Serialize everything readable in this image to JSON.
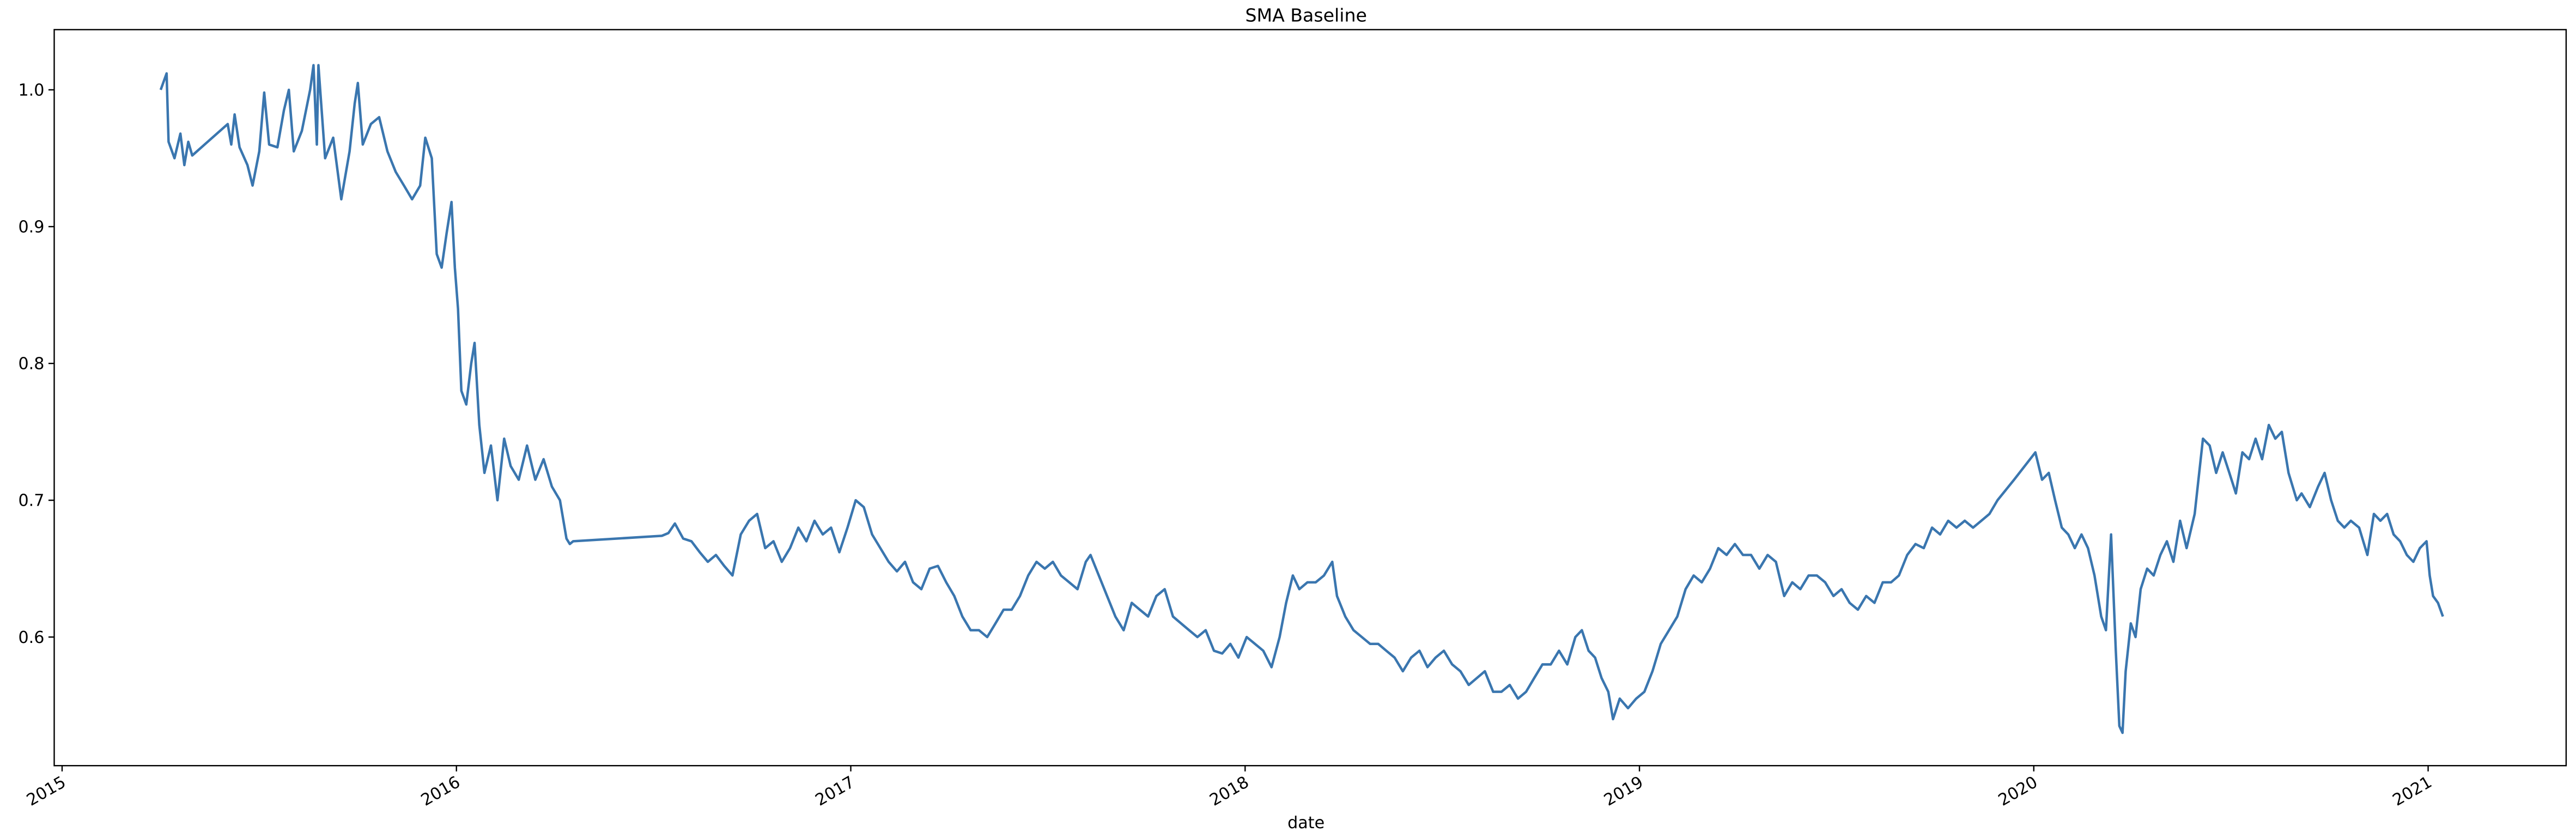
{
  "chart_data": {
    "type": "line",
    "title": "SMA Baseline",
    "x_label": "date",
    "color": "#3a76af",
    "grid": false,
    "xlim": [
      2014.98,
      2021.35
    ],
    "xticks": [
      2015,
      2016,
      2017,
      2018,
      2019,
      2020,
      2021
    ],
    "ylim": [
      0.506,
      1.044
    ],
    "yticks": [
      0.6,
      0.7,
      0.8,
      0.9,
      {
        "value": 1,
        "label": "1.0"
      }
    ],
    "x": [
      2015.25,
      2015.265,
      2015.27,
      2015.285,
      2015.3,
      2015.31,
      2015.32,
      2015.33,
      2015.42,
      2015.429,
      2015.4375,
      2015.45,
      2015.47,
      2015.483,
      2015.5,
      2015.5125,
      2015.525,
      2015.546,
      2015.5625,
      2015.575,
      2015.5875,
      2015.608,
      2015.629,
      2015.6375,
      2015.646,
      2015.65,
      2015.667,
      2015.6875,
      2015.708,
      2015.729,
      2015.742,
      2015.75,
      2015.7625,
      2015.783,
      2015.804,
      2015.825,
      2015.846,
      2015.867,
      2015.8875,
      2015.908,
      2015.921,
      2015.9375,
      2015.95,
      2015.9625,
      2015.975,
      2015.9875,
      2015.996,
      2016.004,
      2016.0125,
      2016.025,
      2016.0375,
      2016.046,
      2016.058,
      2016.071,
      2016.0875,
      2016.104,
      2016.121,
      2016.1375,
      2016.158,
      2016.179,
      2016.2,
      2016.221,
      2016.242,
      2016.2625,
      2016.279,
      2016.2875,
      2016.296,
      2016.521,
      2016.5375,
      2016.554,
      2016.575,
      2016.596,
      2016.617,
      2016.6375,
      2016.658,
      2016.679,
      2016.7,
      2016.721,
      2016.742,
      2016.7625,
      2016.783,
      2016.804,
      2016.825,
      2016.846,
      2016.867,
      2016.8875,
      2016.908,
      2016.929,
      2016.95,
      2016.971,
      2016.9917,
      2017.0125,
      2017.033,
      2017.054,
      2017.075,
      2017.096,
      2017.117,
      2017.1375,
      2017.158,
      2017.179,
      2017.2,
      2017.221,
      2017.242,
      2017.2625,
      2017.283,
      2017.304,
      2017.325,
      2017.346,
      2017.367,
      2017.3875,
      2017.408,
      2017.429,
      2017.45,
      2017.471,
      2017.492,
      2017.5125,
      2017.533,
      2017.554,
      2017.575,
      2017.596,
      2017.608,
      2017.629,
      2017.65,
      2017.671,
      2017.692,
      2017.7125,
      2017.733,
      2017.754,
      2017.775,
      2017.796,
      2017.817,
      2017.8375,
      2017.858,
      2017.879,
      2017.9,
      2017.921,
      2017.942,
      2017.9625,
      2017.983,
      2018.004,
      2018.025,
      2018.046,
      2018.067,
      2018.0875,
      2018.104,
      2018.121,
      2018.1375,
      2018.158,
      2018.179,
      2018.2,
      2018.221,
      2018.233,
      2018.254,
      2018.275,
      2018.296,
      2018.317,
      2018.3375,
      2018.358,
      2018.379,
      2018.4,
      2018.421,
      2018.442,
      2018.4625,
      2018.483,
      2018.504,
      2018.525,
      2018.546,
      2018.567,
      2018.5875,
      2018.608,
      2018.629,
      2018.65,
      2018.671,
      2018.692,
      2018.7125,
      2018.733,
      2018.754,
      2018.775,
      2018.796,
      2018.817,
      2018.8375,
      2018.854,
      2018.871,
      2018.8875,
      2018.904,
      2018.921,
      2018.933,
      2018.95,
      2018.971,
      2018.9917,
      2019.0125,
      2019.033,
      2019.054,
      2019.075,
      2019.096,
      2019.117,
      2019.1375,
      2019.158,
      2019.179,
      2019.2,
      2019.221,
      2019.242,
      2019.2625,
      2019.283,
      2019.304,
      2019.325,
      2019.346,
      2019.367,
      2019.3875,
      2019.408,
      2019.429,
      2019.45,
      2019.471,
      2019.492,
      2019.5125,
      2019.533,
      2019.554,
      2019.575,
      2019.596,
      2019.617,
      2019.638,
      2019.658,
      2019.679,
      2019.7,
      2019.721,
      2019.742,
      2019.7625,
      2019.783,
      2019.804,
      2019.825,
      2019.846,
      2019.867,
      2019.8875,
      2019.908,
      2019.95,
      2020.004,
      2020.021,
      2020.038,
      2020.054,
      2020.071,
      2020.0875,
      2020.104,
      2020.121,
      2020.1375,
      2020.154,
      2020.171,
      2020.183,
      2020.196,
      2020.208,
      2020.217,
      2020.225,
      2020.233,
      2020.246,
      2020.258,
      2020.271,
      2020.2875,
      2020.304,
      2020.321,
      2020.3375,
      2020.354,
      2020.371,
      2020.3875,
      2020.408,
      2020.429,
      2020.446,
      2020.4625,
      2020.479,
      2020.496,
      2020.5125,
      2020.529,
      2020.546,
      2020.5625,
      2020.579,
      2020.596,
      2020.6125,
      2020.629,
      2020.646,
      2020.667,
      2020.679,
      2020.7,
      2020.721,
      2020.7375,
      2020.754,
      2020.771,
      2020.7875,
      2020.804,
      2020.825,
      2020.846,
      2020.8625,
      2020.879,
      2020.896,
      2020.9125,
      2020.929,
      2020.946,
      2020.9625,
      2020.979,
      2020.996,
      2021.004,
      2021.0125,
      2021.025,
      2021.0375
    ],
    "values": [
      1.0,
      1.012,
      0.962,
      0.95,
      0.968,
      0.945,
      0.962,
      0.952,
      0.975,
      0.96,
      0.982,
      0.958,
      0.945,
      0.93,
      0.955,
      0.998,
      0.96,
      0.958,
      0.985,
      1.0,
      0.955,
      0.97,
      1.0,
      1.018,
      0.96,
      1.018,
      0.95,
      0.965,
      0.92,
      0.955,
      0.99,
      1.005,
      0.96,
      0.975,
      0.98,
      0.955,
      0.94,
      0.93,
      0.92,
      0.93,
      0.965,
      0.95,
      0.88,
      0.87,
      0.895,
      0.918,
      0.87,
      0.84,
      0.78,
      0.77,
      0.8,
      0.815,
      0.755,
      0.72,
      0.74,
      0.7,
      0.745,
      0.725,
      0.715,
      0.74,
      0.715,
      0.73,
      0.71,
      0.7,
      0.672,
      0.668,
      0.67,
      0.674,
      0.676,
      0.683,
      0.672,
      0.67,
      0.662,
      0.655,
      0.66,
      0.652,
      0.645,
      0.675,
      0.685,
      0.69,
      0.665,
      0.67,
      0.655,
      0.665,
      0.68,
      0.67,
      0.685,
      0.675,
      0.68,
      0.662,
      0.68,
      0.7,
      0.695,
      0.675,
      0.665,
      0.655,
      0.648,
      0.655,
      0.64,
      0.635,
      0.65,
      0.652,
      0.64,
      0.63,
      0.615,
      0.605,
      0.605,
      0.6,
      0.61,
      0.62,
      0.62,
      0.63,
      0.645,
      0.655,
      0.65,
      0.655,
      0.645,
      0.64,
      0.635,
      0.655,
      0.66,
      0.645,
      0.63,
      0.615,
      0.605,
      0.625,
      0.62,
      0.615,
      0.63,
      0.635,
      0.615,
      0.61,
      0.605,
      0.6,
      0.605,
      0.59,
      0.588,
      0.595,
      0.585,
      0.6,
      0.595,
      0.59,
      0.578,
      0.6,
      0.625,
      0.645,
      0.635,
      0.64,
      0.64,
      0.645,
      0.655,
      0.63,
      0.615,
      0.605,
      0.6,
      0.595,
      0.595,
      0.59,
      0.585,
      0.575,
      0.585,
      0.59,
      0.578,
      0.585,
      0.59,
      0.58,
      0.575,
      0.565,
      0.57,
      0.575,
      0.56,
      0.56,
      0.565,
      0.555,
      0.56,
      0.57,
      0.58,
      0.58,
      0.59,
      0.58,
      0.6,
      0.605,
      0.59,
      0.585,
      0.57,
      0.56,
      0.54,
      0.555,
      0.548,
      0.555,
      0.56,
      0.575,
      0.595,
      0.605,
      0.615,
      0.635,
      0.645,
      0.64,
      0.65,
      0.665,
      0.66,
      0.668,
      0.66,
      0.66,
      0.65,
      0.66,
      0.655,
      0.63,
      0.64,
      0.635,
      0.645,
      0.645,
      0.64,
      0.63,
      0.635,
      0.625,
      0.62,
      0.63,
      0.625,
      0.64,
      0.64,
      0.645,
      0.66,
      0.668,
      0.665,
      0.68,
      0.675,
      0.685,
      0.68,
      0.685,
      0.68,
      0.685,
      0.69,
      0.7,
      0.715,
      0.735,
      0.715,
      0.72,
      0.7,
      0.68,
      0.675,
      0.665,
      0.675,
      0.665,
      0.645,
      0.615,
      0.605,
      0.675,
      0.59,
      0.535,
      0.53,
      0.575,
      0.61,
      0.6,
      0.635,
      0.65,
      0.645,
      0.66,
      0.67,
      0.655,
      0.685,
      0.665,
      0.69,
      0.745,
      0.74,
      0.72,
      0.735,
      0.72,
      0.705,
      0.735,
      0.73,
      0.745,
      0.73,
      0.755,
      0.745,
      0.75,
      0.72,
      0.7,
      0.705,
      0.695,
      0.71,
      0.72,
      0.7,
      0.685,
      0.68,
      0.685,
      0.68,
      0.66,
      0.69,
      0.685,
      0.69,
      0.675,
      0.67,
      0.66,
      0.655,
      0.665,
      0.67,
      0.645,
      0.63,
      0.625,
      0.615
    ]
  }
}
